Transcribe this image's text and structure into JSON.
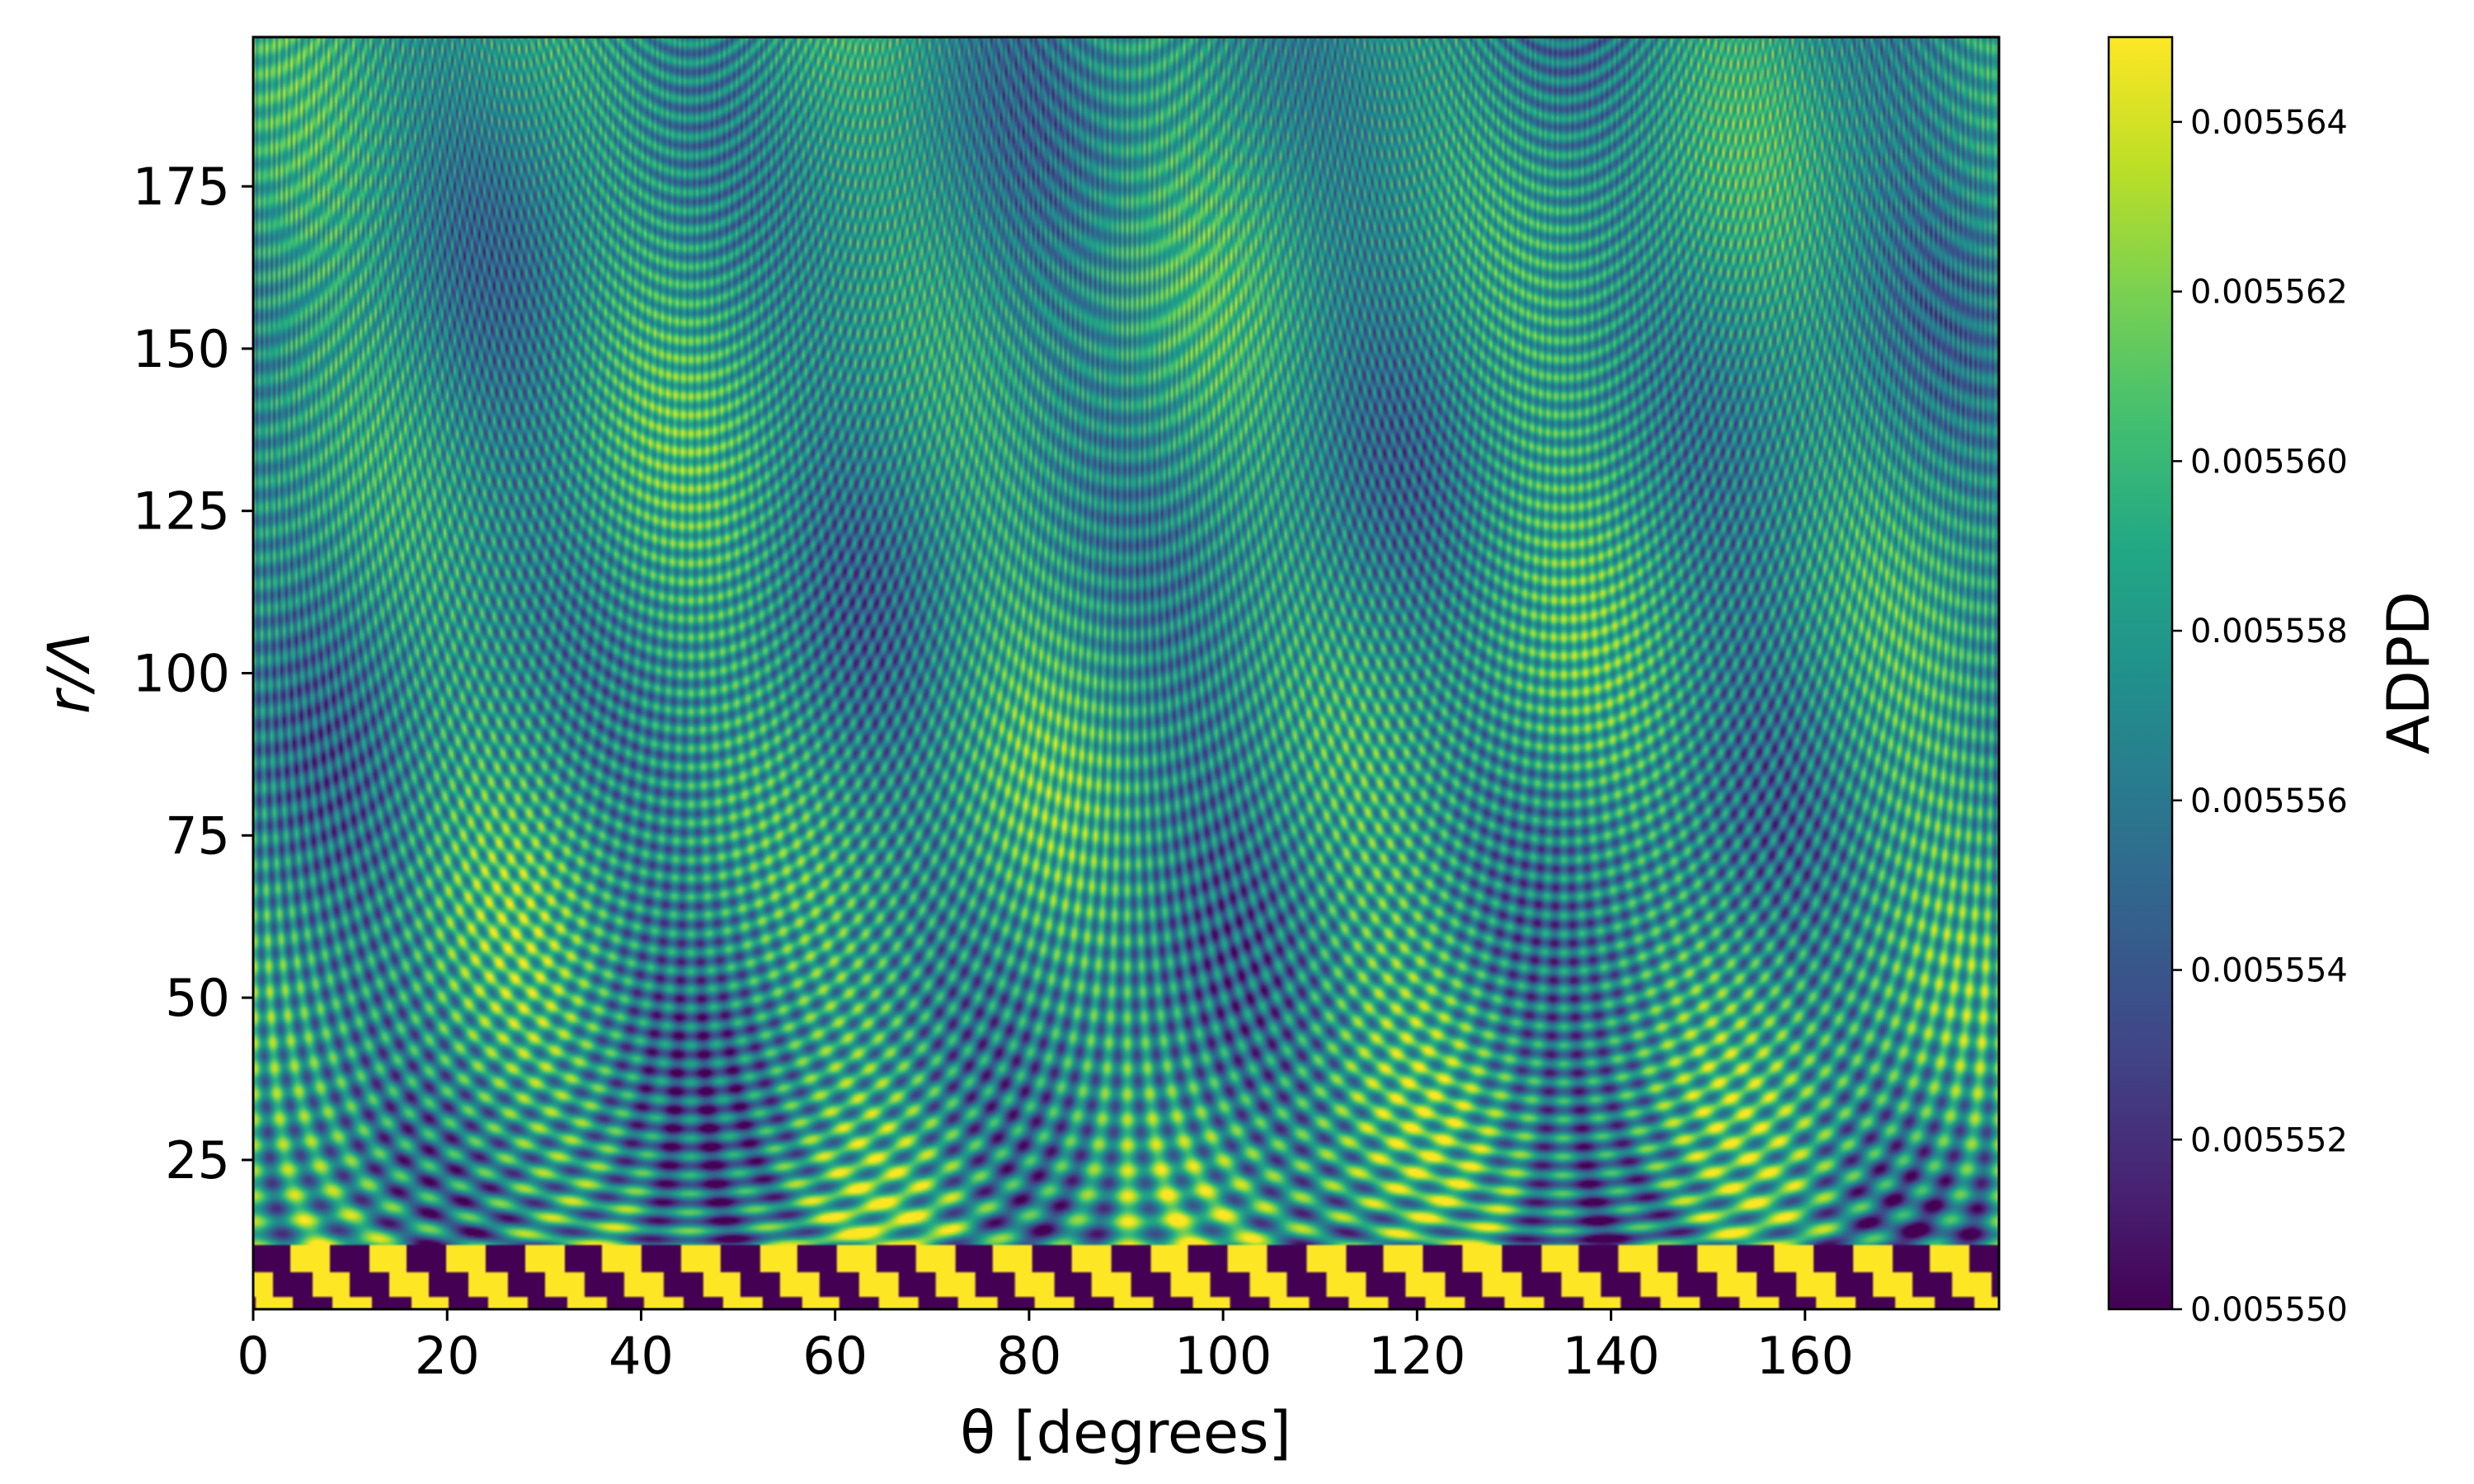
{
  "chart_data": {
    "type": "heatmap",
    "title": "",
    "xlabel": "θ [degrees]",
    "ylabel": "r/Λ",
    "xlim": [
      0,
      180
    ],
    "ylim": [
      2,
      198
    ],
    "x_ticks": [
      0,
      20,
      40,
      60,
      80,
      100,
      120,
      140,
      160
    ],
    "x_tick_labels": [
      "0",
      "20",
      "40",
      "60",
      "80",
      "100",
      "120",
      "140",
      "160"
    ],
    "y_ticks": [
      25,
      50,
      75,
      100,
      125,
      150,
      175
    ],
    "y_tick_labels": [
      "25",
      "50",
      "75",
      "100",
      "125",
      "150",
      "175"
    ],
    "colorbar": {
      "label": "ADPD",
      "colormap": "viridis",
      "vmin": 0.00555,
      "vmax": 0.005565,
      "ticks": [
        0.00555,
        0.005552,
        0.005554,
        0.005556,
        0.005558,
        0.00556,
        0.005562,
        0.005564
      ],
      "tick_labels": [
        "0.005550",
        "0.005552",
        "0.005554",
        "0.005556",
        "0.005558",
        "0.005560",
        "0.005562",
        "0.005564"
      ]
    },
    "grid": false,
    "legend": "none"
  }
}
